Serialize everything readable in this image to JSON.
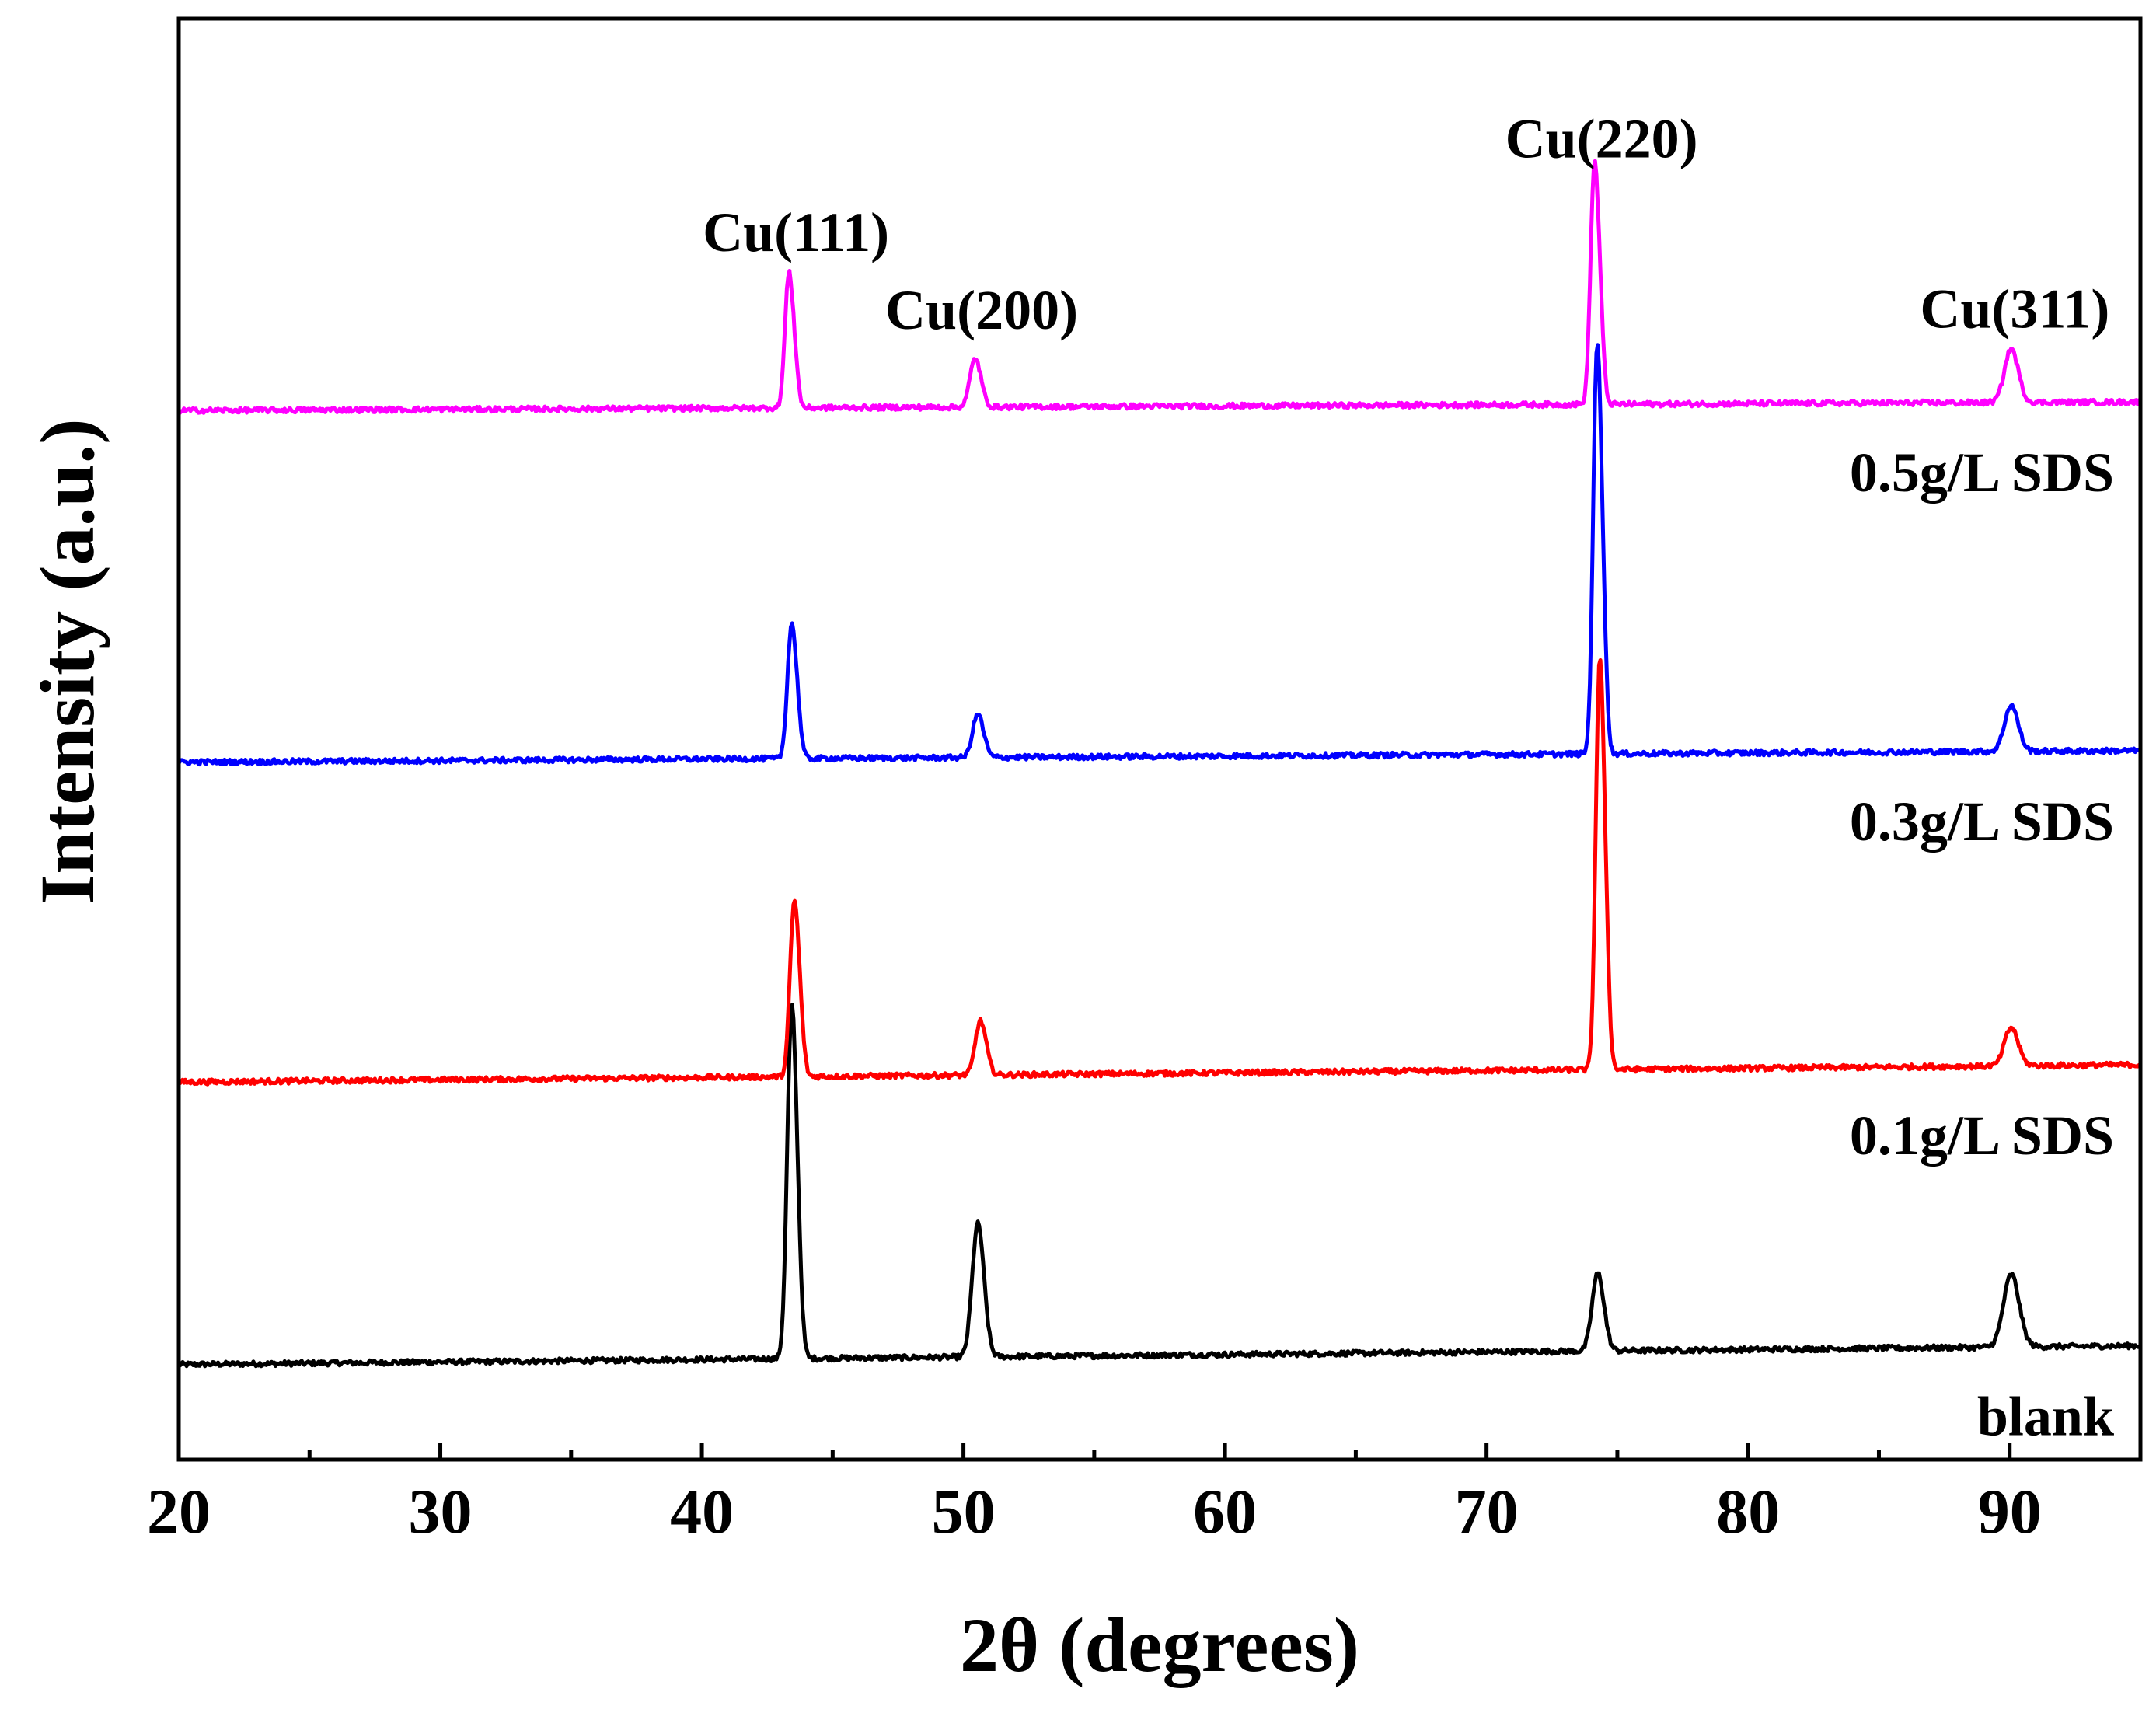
{
  "chart_data": {
    "type": "line",
    "title": "",
    "xlabel": "2θ (degrees)",
    "ylabel": "Intensity (a.u.)",
    "xlim": [
      20,
      95
    ],
    "ylim": [
      0,
      100
    ],
    "x_ticks": [
      20,
      30,
      40,
      50,
      60,
      70,
      80,
      90
    ],
    "x_minor_step": 5,
    "y_tick_labels": false,
    "grid": false,
    "peak_labels": [
      {
        "text": "Cu(111)",
        "x": 43.3
      },
      {
        "text": "Cu(200)",
        "x": 50.4
      },
      {
        "text": "Cu(220)",
        "x": 74.1
      },
      {
        "text": "Cu(311)",
        "x": 89.9
      }
    ],
    "series": [
      {
        "name": "blank",
        "color": "#000000",
        "baseline_start": 6.6,
        "baseline_end": 7.9,
        "peaks": [
          {
            "x": 43.4,
            "height": 20.2,
            "width": 0.16
          },
          {
            "x": 50.5,
            "height": 7.2,
            "width": 0.2
          },
          {
            "x": 74.2,
            "height": 4.2,
            "width": 0.2
          },
          {
            "x": 90.0,
            "height": 3.7,
            "width": 0.28
          }
        ]
      },
      {
        "name": "0.1g/L SDS",
        "color": "#ff0000",
        "baseline_start": 26.2,
        "baseline_end": 27.4,
        "peaks": [
          {
            "x": 43.5,
            "height": 10.3,
            "width": 0.15
          },
          {
            "x": 50.6,
            "height": 3.0,
            "width": 0.18
          },
          {
            "x": 74.3,
            "height": 24.7,
            "width": 0.14
          },
          {
            "x": 90.0,
            "height": 2.0,
            "width": 0.24
          }
        ]
      },
      {
        "name": "0.3g/L SDS",
        "color": "#0000ff",
        "baseline_start": 48.4,
        "baseline_end": 49.2,
        "peaks": [
          {
            "x": 43.4,
            "height": 7.9,
            "width": 0.15
          },
          {
            "x": 50.5,
            "height": 2.4,
            "width": 0.18
          },
          {
            "x": 74.2,
            "height": 24.6,
            "width": 0.14
          },
          {
            "x": 90.0,
            "height": 2.4,
            "width": 0.24
          }
        ]
      },
      {
        "name": "0.5g/L SDS",
        "color": "#ff00ff",
        "baseline_start": 72.8,
        "baseline_end": 73.4,
        "peaks": [
          {
            "x": 43.3,
            "height": 8.1,
            "width": 0.14
          },
          {
            "x": 50.4,
            "height": 2.7,
            "width": 0.18
          },
          {
            "x": 74.1,
            "height": 14.6,
            "width": 0.14
          },
          {
            "x": 90.0,
            "height": 2.8,
            "width": 0.24
          }
        ]
      }
    ]
  }
}
